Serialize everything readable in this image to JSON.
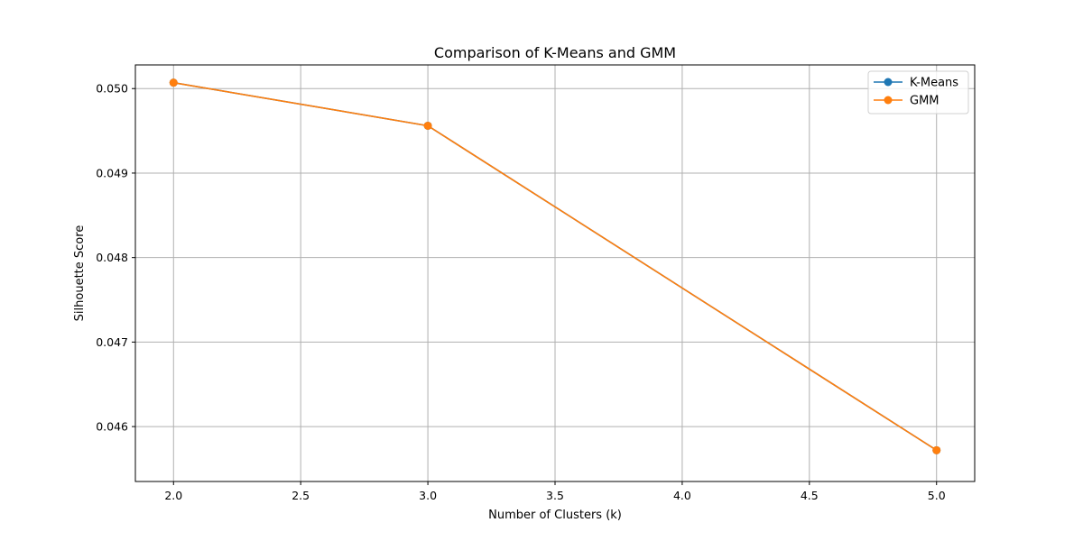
{
  "chart_data": {
    "type": "line",
    "title": "Comparison of K-Means and GMM",
    "xlabel": "Number of Clusters (k)",
    "ylabel": "Silhouette Score",
    "x": [
      2,
      3,
      5
    ],
    "series": [
      {
        "name": "K-Means",
        "color": "#1f77b4",
        "values": [
          0.05007,
          0.04956,
          0.04572
        ]
      },
      {
        "name": "GMM",
        "color": "#ff7f0e",
        "values": [
          0.05007,
          0.04956,
          0.04572
        ]
      }
    ],
    "xlim": [
      1.85,
      5.15
    ],
    "ylim": [
      0.04535,
      0.05028
    ],
    "xticks": [
      2.0,
      2.5,
      3.0,
      3.5,
      4.0,
      4.5,
      5.0
    ],
    "xtick_labels": [
      "2.0",
      "2.5",
      "3.0",
      "3.5",
      "4.0",
      "4.5",
      "5.0"
    ],
    "yticks": [
      0.046,
      0.047,
      0.048,
      0.049,
      0.05
    ],
    "ytick_labels": [
      "0.046",
      "0.047",
      "0.048",
      "0.049",
      "0.050"
    ],
    "grid": true,
    "legend_position": "top-right"
  }
}
